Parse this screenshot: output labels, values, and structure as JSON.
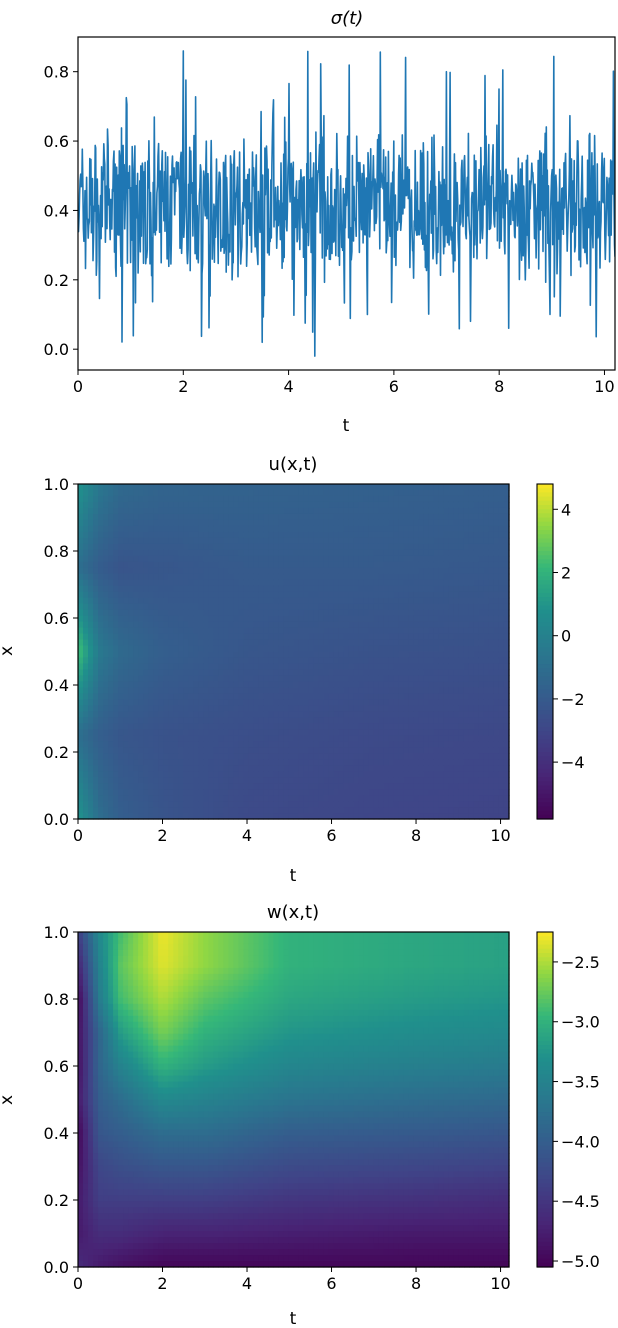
{
  "chart_data": [
    {
      "type": "line",
      "title": "σ(t)",
      "xlabel": "t",
      "ylabel": "",
      "xlim": [
        0,
        10.2
      ],
      "ylim": [
        -0.06,
        0.9
      ],
      "xticks": [
        "0",
        "2",
        "4",
        "6",
        "8",
        "10"
      ],
      "yticks": [
        "0.0",
        "0.2",
        "0.4",
        "0.6",
        "0.8"
      ],
      "grid": false,
      "colors": {
        "series": "#1f77b4"
      },
      "x": [
        0.0,
        0.5,
        1.0,
        1.5,
        2.0,
        2.5,
        3.0,
        3.5,
        4.0,
        4.5,
        5.0,
        5.5,
        6.0,
        6.5,
        7.0,
        7.5,
        8.0,
        8.5,
        9.0,
        9.5,
        10.0
      ],
      "series": [
        {
          "values": [
            0.4,
            0.55,
            0.25,
            0.45,
            0.86,
            0.3,
            0.45,
            0.02,
            0.55,
            -0.02,
            0.4,
            0.1,
            0.6,
            0.35,
            0.8,
            0.45,
            0.75,
            0.2,
            0.5,
            0.6,
            0.55
          ]
        }
      ]
    },
    {
      "type": "heatmap",
      "title": "u(x,t)",
      "xlabel": "t",
      "ylabel": "x",
      "xlim": [
        0,
        10.2
      ],
      "ylim": [
        0.0,
        1.0
      ],
      "xticks": [
        "0",
        "2",
        "4",
        "6",
        "8",
        "10"
      ],
      "yticks": [
        "0.0",
        "0.2",
        "0.4",
        "0.6",
        "0.8",
        "1.0"
      ],
      "colormap": "viridis",
      "colorbar": {
        "min": -5.8,
        "max": 4.8,
        "ticks": [
          "4",
          "2",
          "0",
          "−2",
          "−4"
        ]
      },
      "t": [
        0,
        0.5,
        1,
        2,
        4,
        7,
        10.2
      ],
      "x": [
        0.0,
        0.25,
        0.5,
        0.75,
        1.0
      ],
      "values": [
        [
          1.0,
          -1.0,
          2.5,
          -1.0,
          1.0
        ],
        [
          -1.0,
          -1.8,
          -0.4,
          -1.9,
          -0.5
        ],
        [
          -1.8,
          -2.2,
          -1.2,
          -2.3,
          -1.2
        ],
        [
          -2.3,
          -2.4,
          -1.8,
          -2.2,
          -1.5
        ],
        [
          -2.8,
          -2.6,
          -2.2,
          -2.0,
          -1.6
        ],
        [
          -3.0,
          -2.8,
          -2.4,
          -2.0,
          -1.7
        ],
        [
          -3.1,
          -2.9,
          -2.5,
          -2.1,
          -1.8
        ]
      ]
    },
    {
      "type": "heatmap",
      "title": "w(x,t)",
      "xlabel": "t",
      "ylabel": "x",
      "xlim": [
        0,
        10.2
      ],
      "ylim": [
        0.0,
        1.0
      ],
      "xticks": [
        "0",
        "2",
        "4",
        "6",
        "8",
        "10"
      ],
      "yticks": [
        "0.0",
        "0.2",
        "0.4",
        "0.6",
        "0.8",
        "1.0"
      ],
      "colormap": "viridis",
      "colorbar": {
        "min": -5.05,
        "max": -2.25,
        "ticks": [
          "−2.5",
          "−3.0",
          "−3.5",
          "−4.0",
          "−4.5",
          "−5.0"
        ]
      },
      "t": [
        0,
        0.5,
        1,
        2,
        3,
        5,
        8,
        10.2
      ],
      "x": [
        0.0,
        0.1,
        0.2,
        0.3,
        0.4,
        0.5,
        0.6,
        0.7,
        0.8,
        0.9,
        1.0
      ],
      "values": [
        [
          -4.6,
          -4.8,
          -4.8,
          -4.9,
          -5.0,
          -4.8,
          -4.9,
          -4.9,
          -5.0,
          -4.7,
          -4.4
        ],
        [
          -4.8,
          -4.6,
          -4.4,
          -4.3,
          -4.1,
          -4.0,
          -3.9,
          -3.9,
          -3.6,
          -3.5,
          -3.4
        ],
        [
          -4.9,
          -4.6,
          -4.4,
          -4.2,
          -4.0,
          -3.8,
          -3.5,
          -3.2,
          -2.9,
          -2.8,
          -2.9
        ],
        [
          -5.0,
          -4.7,
          -4.4,
          -4.1,
          -3.8,
          -3.4,
          -3.0,
          -2.7,
          -2.5,
          -2.35,
          -2.3
        ],
        [
          -5.0,
          -4.7,
          -4.4,
          -4.1,
          -3.8,
          -3.5,
          -3.2,
          -3.0,
          -2.8,
          -2.6,
          -2.6
        ],
        [
          -5.0,
          -4.75,
          -4.5,
          -4.25,
          -4.0,
          -3.7,
          -3.45,
          -3.25,
          -3.1,
          -3.0,
          -3.0
        ],
        [
          -5.0,
          -4.8,
          -4.55,
          -4.3,
          -4.05,
          -3.8,
          -3.55,
          -3.35,
          -3.2,
          -3.1,
          -3.1
        ],
        [
          -5.0,
          -4.8,
          -4.6,
          -4.35,
          -4.1,
          -3.85,
          -3.6,
          -3.4,
          -3.25,
          -3.15,
          -3.15
        ]
      ]
    }
  ]
}
